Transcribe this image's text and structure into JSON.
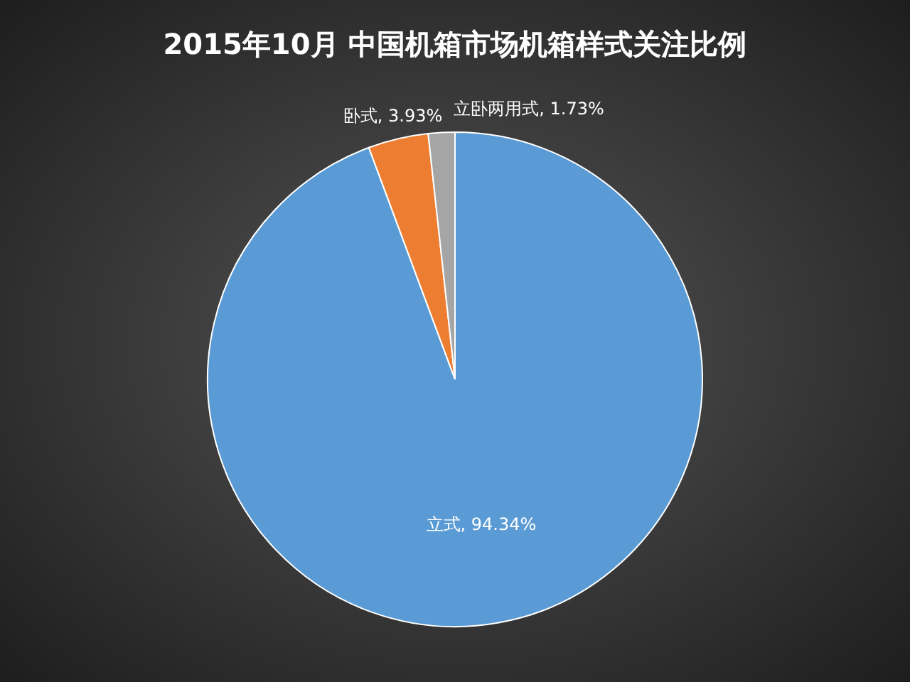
{
  "chart_data": {
    "type": "pie",
    "title": "2015年10月  中国机箱市场机箱样式关注比例",
    "categories": [
      "立式",
      "卧式",
      "立卧两用式"
    ],
    "values": [
      94.34,
      3.93,
      1.73
    ],
    "value_labels": [
      "94.34%",
      "3.93%",
      "1.73%"
    ],
    "colors": [
      "#5b9bd5",
      "#ed7d31",
      "#a5a5a5"
    ]
  }
}
